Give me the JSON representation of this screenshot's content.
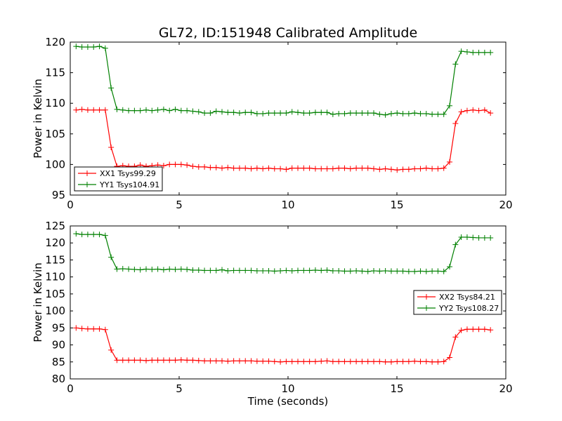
{
  "chart_data": [
    {
      "type": "line",
      "title": "GL72, ID:151948 Calibrated Amplitude",
      "xlabel": "",
      "ylabel": "Power in Kelvin",
      "xlim": [
        0,
        20
      ],
      "ylim": [
        95,
        120
      ],
      "xticks": [
        0,
        5,
        10,
        15,
        20
      ],
      "yticks": [
        95,
        100,
        105,
        110,
        115,
        120
      ],
      "grid": false,
      "legend_placement": "lower-left",
      "x_start": 0.268,
      "x_step": 0.268,
      "series": [
        {
          "name": "XX1 Tsys99.29",
          "color": "#ff0000",
          "marker": "+",
          "values": [
            108.9,
            109.0,
            108.9,
            108.9,
            108.9,
            108.9,
            102.8,
            99.7,
            99.8,
            99.7,
            99.7,
            99.9,
            99.7,
            99.8,
            99.9,
            99.8,
            100.0,
            100.0,
            100.0,
            99.9,
            99.7,
            99.6,
            99.6,
            99.5,
            99.5,
            99.4,
            99.5,
            99.4,
            99.4,
            99.4,
            99.3,
            99.4,
            99.3,
            99.4,
            99.3,
            99.3,
            99.2,
            99.4,
            99.4,
            99.4,
            99.4,
            99.3,
            99.3,
            99.3,
            99.3,
            99.4,
            99.4,
            99.3,
            99.4,
            99.4,
            99.4,
            99.3,
            99.2,
            99.3,
            99.2,
            99.1,
            99.2,
            99.2,
            99.3,
            99.3,
            99.4,
            99.3,
            99.3,
            99.4,
            100.4,
            106.7,
            108.6,
            108.8,
            108.9,
            108.8,
            108.9,
            108.4
          ]
        },
        {
          "name": "YY1 Tsys104.91",
          "color": "#008000",
          "marker": "+",
          "values": [
            119.3,
            119.2,
            119.2,
            119.2,
            119.3,
            119.0,
            112.5,
            109.0,
            108.9,
            108.8,
            108.8,
            108.8,
            108.9,
            108.8,
            108.9,
            109.0,
            108.8,
            109.0,
            108.8,
            108.8,
            108.7,
            108.6,
            108.4,
            108.4,
            108.7,
            108.6,
            108.5,
            108.5,
            108.4,
            108.5,
            108.5,
            108.3,
            108.3,
            108.4,
            108.4,
            108.4,
            108.4,
            108.6,
            108.5,
            108.4,
            108.4,
            108.5,
            108.5,
            108.5,
            108.2,
            108.3,
            108.3,
            108.4,
            108.4,
            108.4,
            108.4,
            108.4,
            108.2,
            108.1,
            108.3,
            108.4,
            108.3,
            108.3,
            108.4,
            108.3,
            108.3,
            108.2,
            108.2,
            108.2,
            109.6,
            116.4,
            118.5,
            118.4,
            118.3,
            118.3,
            118.3,
            118.3
          ]
        }
      ]
    },
    {
      "type": "line",
      "title": "",
      "xlabel": "Time (seconds)",
      "ylabel": "Power in Kelvin",
      "xlim": [
        0,
        20
      ],
      "ylim": [
        80,
        125
      ],
      "xticks": [
        0,
        5,
        10,
        15,
        20
      ],
      "yticks": [
        80,
        85,
        90,
        95,
        100,
        105,
        110,
        115,
        120,
        125
      ],
      "grid": false,
      "legend_placement": "center-right",
      "x_start": 0.268,
      "x_step": 0.268,
      "series": [
        {
          "name": "XX2 Tsys84.21",
          "color": "#ff0000",
          "marker": "+",
          "values": [
            95.0,
            94.8,
            94.7,
            94.7,
            94.7,
            94.5,
            88.5,
            85.5,
            85.5,
            85.5,
            85.5,
            85.5,
            85.4,
            85.5,
            85.5,
            85.5,
            85.5,
            85.5,
            85.6,
            85.5,
            85.5,
            85.4,
            85.3,
            85.3,
            85.3,
            85.3,
            85.2,
            85.3,
            85.3,
            85.3,
            85.3,
            85.2,
            85.2,
            85.2,
            85.1,
            85.0,
            85.1,
            85.1,
            85.1,
            85.1,
            85.1,
            85.1,
            85.2,
            85.3,
            85.1,
            85.1,
            85.1,
            85.1,
            85.1,
            85.1,
            85.1,
            85.1,
            85.1,
            85.0,
            85.0,
            85.1,
            85.1,
            85.1,
            85.2,
            85.1,
            85.1,
            85.0,
            85.0,
            85.1,
            86.3,
            92.3,
            94.3,
            94.6,
            94.6,
            94.6,
            94.6,
            94.4
          ]
        },
        {
          "name": "YY2 Tsys108.27",
          "color": "#008000",
          "marker": "+",
          "values": [
            122.7,
            122.5,
            122.5,
            122.5,
            122.5,
            122.2,
            115.8,
            112.3,
            112.4,
            112.3,
            112.2,
            112.1,
            112.3,
            112.2,
            112.3,
            112.1,
            112.3,
            112.2,
            112.3,
            112.2,
            112.0,
            112.0,
            111.9,
            111.9,
            111.9,
            112.1,
            111.8,
            111.9,
            111.9,
            111.9,
            111.9,
            111.8,
            111.8,
            111.8,
            111.7,
            111.8,
            111.9,
            111.8,
            111.9,
            111.9,
            111.9,
            112.0,
            111.9,
            112.0,
            111.8,
            111.8,
            111.7,
            111.7,
            111.8,
            111.7,
            111.6,
            111.8,
            111.7,
            111.8,
            111.7,
            111.7,
            111.7,
            111.6,
            111.6,
            111.7,
            111.6,
            111.7,
            111.7,
            111.6,
            113.0,
            119.5,
            121.7,
            121.7,
            121.6,
            121.5,
            121.5,
            121.5
          ]
        }
      ]
    }
  ]
}
